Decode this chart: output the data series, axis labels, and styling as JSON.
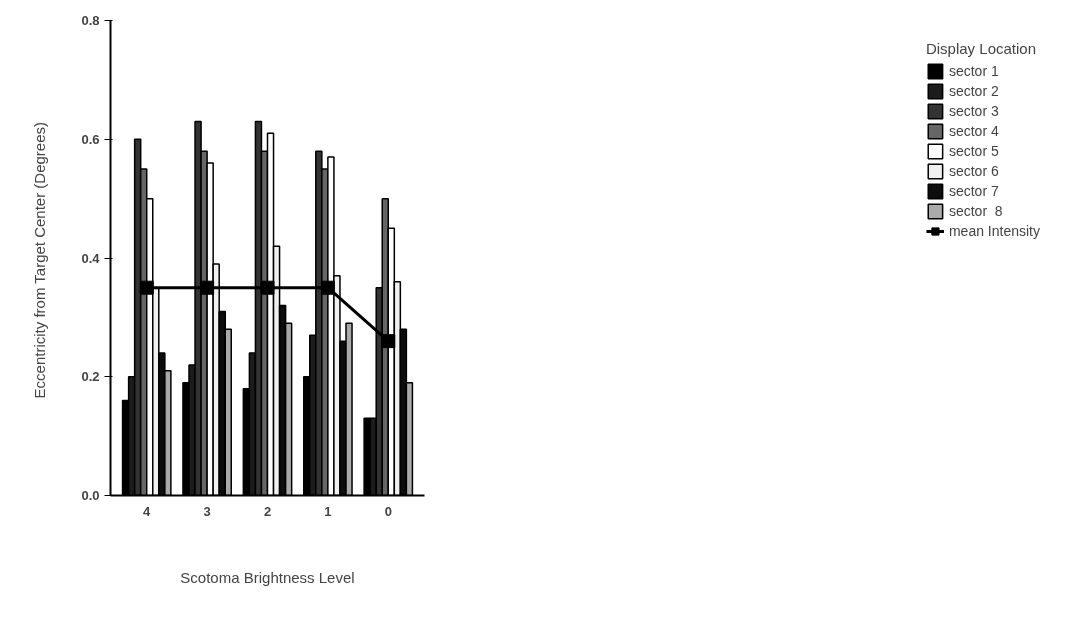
{
  "chart_data": {
    "type": "bar",
    "xlabel": "Scotoma Brightness Level",
    "ylabel": "Eccentricity from Target Center  (Degrees)",
    "legend_title": "Display Location",
    "categories": [
      "4",
      "3",
      "2",
      "1",
      "0"
    ],
    "series": [
      {
        "name": "sector 1",
        "color": "#000000",
        "values": [
          0.16,
          0.19,
          0.18,
          0.2,
          0.13
        ]
      },
      {
        "name": "sector 2",
        "color": "#1c1c1c",
        "values": [
          0.2,
          0.22,
          0.24,
          0.27,
          0.13
        ]
      },
      {
        "name": "sector 3",
        "color": "#333333",
        "values": [
          0.6,
          0.63,
          0.63,
          0.58,
          0.35
        ]
      },
      {
        "name": "sector 4",
        "color": "#666666",
        "values": [
          0.55,
          0.58,
          0.58,
          0.55,
          0.5
        ]
      },
      {
        "name": "sector 5",
        "color": "#ffffff",
        "values": [
          0.5,
          0.56,
          0.61,
          0.57,
          0.45
        ]
      },
      {
        "name": "sector 6",
        "color": "#f0f0f0",
        "values": [
          0.35,
          0.39,
          0.42,
          0.37,
          0.36
        ]
      },
      {
        "name": "sector 7",
        "color": "#0d0d0d",
        "values": [
          0.24,
          0.31,
          0.32,
          0.26,
          0.28
        ]
      },
      {
        "name": "sector  8",
        "color": "#aaaaaa",
        "values": [
          0.21,
          0.28,
          0.29,
          0.29,
          0.19
        ]
      },
      {
        "name": "mean Intensity",
        "type": "line",
        "color": "#000000",
        "marker": "square",
        "values": [
          0.35,
          0.35,
          0.35,
          0.35,
          0.26
        ]
      }
    ],
    "ylim": [
      0,
      0.8
    ],
    "yticks": [
      {
        "value": 0,
        "label": "0.0"
      },
      {
        "value": 0.2,
        "label": "0.2"
      },
      {
        "value": 0.4,
        "label": "0.4"
      },
      {
        "value": 0.6,
        "label": "0.6"
      },
      {
        "value": 0.8,
        "label": "0.8"
      }
    ],
    "grid": false,
    "legend": "right"
  }
}
